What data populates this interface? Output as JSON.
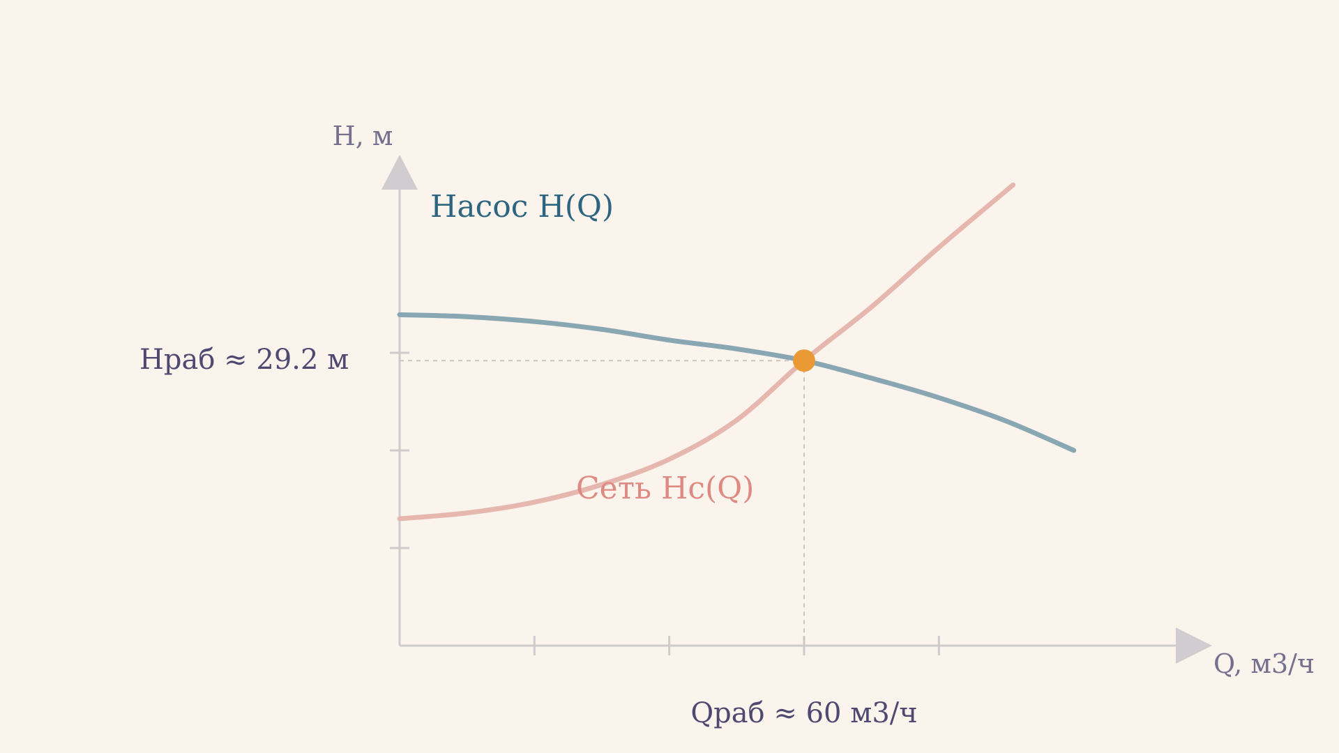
{
  "colors": {
    "background": "#faf4ed",
    "axis": "#cfcbcd",
    "pump_curve": "#89a7b3",
    "pump_label": "#2d6580",
    "network_curve": "#e6b7ae",
    "network_label": "#de8a82",
    "operating_point": "#e99a34",
    "guide": "#c9c4c2",
    "text": "#4f4870",
    "axis_text": "#76708f"
  },
  "chart_data": {
    "type": "line",
    "title": "",
    "xlabel": "Q, м3/ч",
    "ylabel": "H, м",
    "xlim": [
      0,
      120
    ],
    "ylim": [
      0,
      50
    ],
    "grid": false,
    "x_ticks": [
      20,
      40,
      60,
      80
    ],
    "y_ticks": [
      10,
      20,
      30
    ],
    "series": [
      {
        "name": "Насос H(Q)",
        "color": "#89a7b3",
        "x": [
          0,
          10,
          20,
          30,
          40,
          50,
          60,
          70,
          80,
          90,
          100
        ],
        "y": [
          33.9,
          33.7,
          33.2,
          32.4,
          31.3,
          30.4,
          29.2,
          27.4,
          25.4,
          23.0,
          20.0
        ]
      },
      {
        "name": "Сеть Hc(Q)",
        "color": "#e6b7ae",
        "x": [
          0,
          10,
          20,
          30,
          40,
          50,
          60,
          70,
          80,
          91
        ],
        "y": [
          13.0,
          13.6,
          14.7,
          16.5,
          19.1,
          23.1,
          29.2,
          34.7,
          40.8,
          47.2
        ]
      }
    ],
    "operating_point": {
      "x": 60,
      "y": 29.2,
      "x_label": "Qраб  ≈  60 м3/ч",
      "y_label": "Hраб  ≈  29.2 м"
    }
  }
}
